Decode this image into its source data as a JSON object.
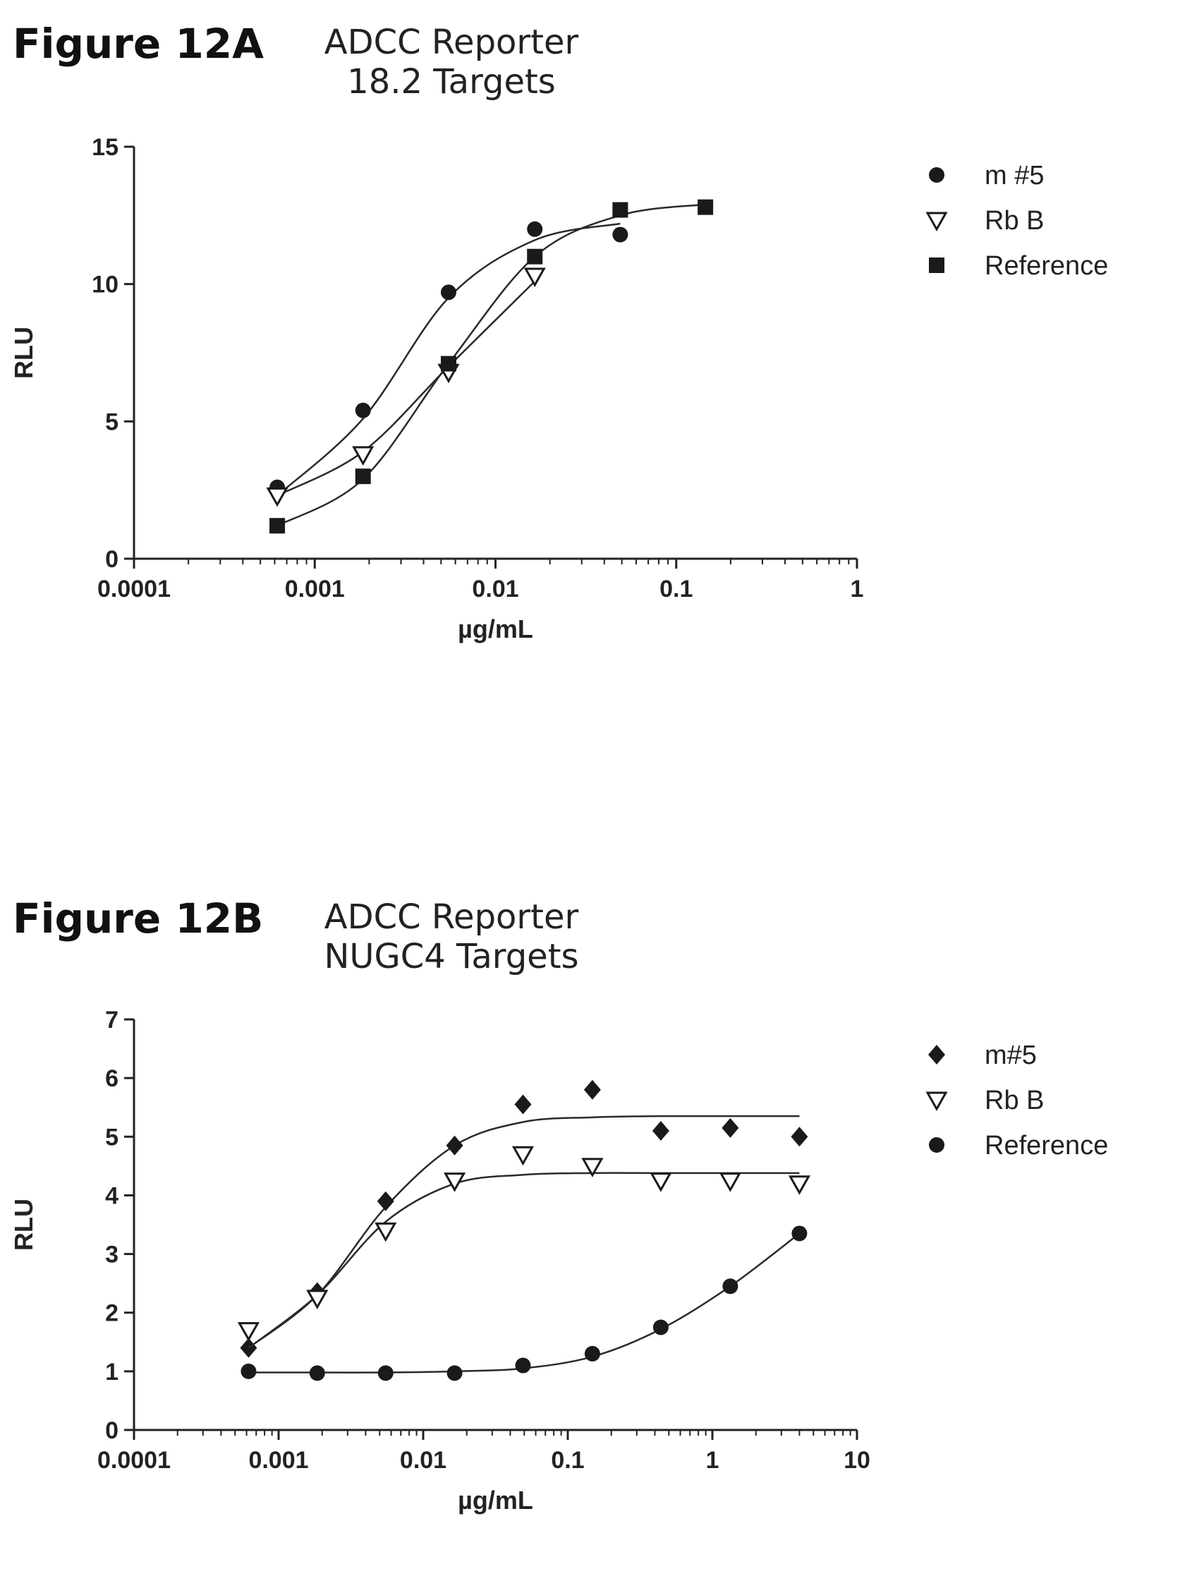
{
  "chart_data": [
    {
      "type": "scatter",
      "figure_label": "Figure 12A",
      "title": "ADCC Reporter",
      "subtitle": "18.2 Targets",
      "xlabel": "µg/mL",
      "ylabel": "RLU",
      "xscale": "log",
      "xlim": [
        0.0001,
        1
      ],
      "ylim": [
        0,
        15
      ],
      "xticks": [
        "0.0001",
        "0.001",
        "0.01",
        "0.1",
        "1"
      ],
      "yticks": [
        "0",
        "5",
        "10",
        "15"
      ],
      "legend_position": "right",
      "series": [
        {
          "name": "m #5",
          "marker": "filled-circle",
          "x": [
            0.00062,
            0.00185,
            0.0055,
            0.0165,
            0.049
          ],
          "y": [
            2.6,
            5.4,
            9.7,
            12.0,
            11.8
          ],
          "fit_y": [
            2.3,
            5.1,
            9.5,
            11.6,
            12.2
          ]
        },
        {
          "name": "Rb B",
          "marker": "open-triangle-down",
          "x": [
            0.00062,
            0.00185,
            0.0055,
            0.0165
          ],
          "y": [
            2.3,
            3.8,
            6.8,
            10.3
          ],
          "fit_y": [
            2.3,
            3.9,
            7.0,
            10.1
          ]
        },
        {
          "name": "Reference",
          "marker": "filled-square",
          "x": [
            0.00062,
            0.00185,
            0.0055,
            0.0165,
            0.049,
            0.145
          ],
          "y": [
            1.2,
            3.0,
            7.1,
            11.0,
            12.7,
            12.8
          ],
          "fit_y": [
            1.2,
            2.9,
            7.1,
            11.0,
            12.5,
            12.9
          ]
        }
      ]
    },
    {
      "type": "scatter",
      "figure_label": "Figure 12B",
      "title": "ADCC Reporter",
      "subtitle": "NUGC4 Targets",
      "xlabel": "µg/mL",
      "ylabel": "RLU",
      "xscale": "log",
      "xlim": [
        0.0001,
        10
      ],
      "ylim": [
        0,
        7
      ],
      "xticks": [
        "0.0001",
        "0.001",
        "0.01",
        "0.1",
        "1",
        "10"
      ],
      "yticks": [
        "0",
        "1",
        "2",
        "3",
        "4",
        "5",
        "6",
        "7"
      ],
      "legend_position": "right",
      "series": [
        {
          "name": "m#5",
          "marker": "filled-diamond",
          "x": [
            0.00062,
            0.00185,
            0.0055,
            0.0165,
            0.049,
            0.148,
            0.44,
            1.33,
            4.0
          ],
          "y": [
            1.4,
            2.35,
            3.9,
            4.85,
            5.55,
            5.8,
            5.1,
            5.15,
            5.0
          ],
          "fit_y": [
            1.4,
            2.3,
            3.8,
            4.85,
            5.25,
            5.33,
            5.35,
            5.35,
            5.35
          ]
        },
        {
          "name": "Rb B",
          "marker": "open-triangle-down",
          "x": [
            0.00062,
            0.00185,
            0.0055,
            0.0165,
            0.049,
            0.148,
            0.44,
            1.33,
            4.0
          ],
          "y": [
            1.7,
            2.25,
            3.4,
            4.25,
            4.7,
            4.5,
            4.25,
            4.25,
            4.2
          ],
          "fit_y": [
            1.4,
            2.3,
            3.55,
            4.2,
            4.35,
            4.38,
            4.38,
            4.38,
            4.38
          ]
        },
        {
          "name": "Reference",
          "marker": "filled-circle",
          "x": [
            0.00062,
            0.00185,
            0.0055,
            0.0165,
            0.049,
            0.148,
            0.44,
            1.33,
            4.0
          ],
          "y": [
            1.0,
            0.97,
            0.97,
            0.97,
            1.1,
            1.3,
            1.75,
            2.45,
            3.35
          ],
          "fit_y": [
            0.98,
            0.98,
            0.98,
            1.0,
            1.05,
            1.25,
            1.72,
            2.45,
            3.35
          ]
        }
      ]
    }
  ]
}
